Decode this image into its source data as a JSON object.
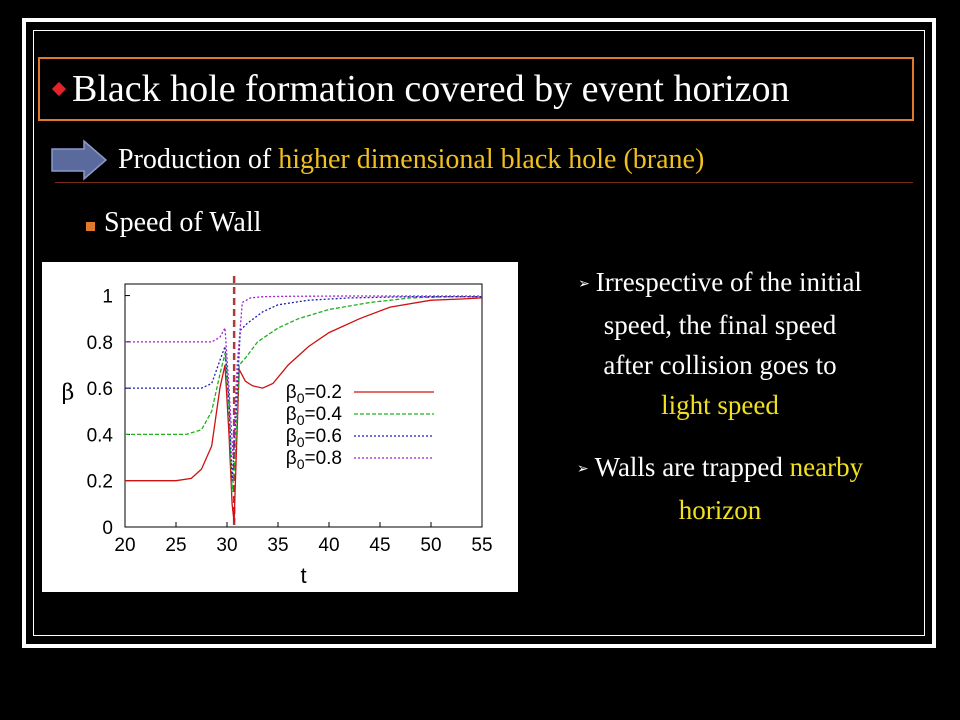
{
  "slide": {
    "title": "Black hole formation covered by event horizon",
    "subtitle": {
      "prefix": "Production of ",
      "highlight": "higher dimensional black hole (brane)"
    },
    "bullet": "Speed of Wall",
    "notes": {
      "n1_line1": "Irrespective of the initial",
      "n1_line2": "speed, the final speed",
      "n1_line3": "after collision goes to",
      "n1_line4": "light speed",
      "n2_prefix": "Walls are trapped ",
      "n2_highlight": "nearby",
      "n2_line2": "horizon"
    },
    "colors": {
      "title_box": "#e07a2a",
      "highlight": "#f0c020",
      "yellow": "#f0e020",
      "arrow": "#5a6a9c"
    }
  },
  "chart_data": {
    "type": "line",
    "xlabel": "t",
    "ylabel": "β",
    "xlim": [
      20,
      55
    ],
    "ylim": [
      0,
      1.05
    ],
    "x_ticks": [
      "20",
      "25",
      "30",
      "35",
      "40",
      "45",
      "50",
      "55"
    ],
    "y_ticks": [
      "0",
      "0.2",
      "0.4",
      "0.6",
      "0.8",
      "1"
    ],
    "legend_position": "center-right",
    "vertical_marker": {
      "x": 30.7,
      "color": "#b03a3a",
      "style": "dashed"
    },
    "series": [
      {
        "name": "β0=0.2",
        "color": "#d01010",
        "style": "solid",
        "x": [
          20,
          25,
          26.5,
          27.5,
          28.5,
          29.3,
          29.8,
          30.2,
          30.5,
          30.7,
          30.9,
          31.2,
          31.8,
          32.5,
          33.5,
          34.5,
          36,
          38,
          40,
          43,
          46,
          50,
          53,
          55
        ],
        "y": [
          0.2,
          0.2,
          0.21,
          0.25,
          0.35,
          0.6,
          0.7,
          0.4,
          0.1,
          0.02,
          0.3,
          0.68,
          0.63,
          0.61,
          0.6,
          0.62,
          0.7,
          0.78,
          0.84,
          0.9,
          0.95,
          0.98,
          0.985,
          0.99
        ]
      },
      {
        "name": "β0=0.4",
        "color": "#20b020",
        "style": "dashed",
        "x": [
          20,
          26,
          27.5,
          28.5,
          29.3,
          29.8,
          30.2,
          30.5,
          30.8,
          31.2,
          31.8,
          33,
          35,
          37,
          40,
          44,
          48,
          52,
          55
        ],
        "y": [
          0.4,
          0.4,
          0.42,
          0.5,
          0.66,
          0.75,
          0.5,
          0.15,
          0.3,
          0.7,
          0.73,
          0.8,
          0.86,
          0.9,
          0.94,
          0.97,
          0.99,
          0.995,
          0.995
        ]
      },
      {
        "name": "β0=0.6",
        "color": "#2020b0",
        "style": "dotted",
        "x": [
          20,
          27.5,
          28.5,
          29.3,
          29.8,
          30.2,
          30.5,
          30.9,
          31.3,
          32,
          33.5,
          35,
          38,
          42,
          48,
          55
        ],
        "y": [
          0.6,
          0.6,
          0.62,
          0.72,
          0.78,
          0.55,
          0.2,
          0.5,
          0.85,
          0.88,
          0.93,
          0.96,
          0.98,
          0.99,
          0.995,
          0.995
        ]
      },
      {
        "name": "β0=0.8",
        "color": "#a020d0",
        "style": "dotted",
        "x": [
          20,
          28.5,
          29.3,
          29.8,
          30.2,
          30.6,
          31.0,
          31.5,
          32.3,
          33.5,
          36,
          42,
          55
        ],
        "y": [
          0.8,
          0.8,
          0.82,
          0.86,
          0.6,
          0.3,
          0.7,
          0.97,
          0.99,
          0.995,
          0.997,
          0.998,
          0.998
        ]
      }
    ]
  }
}
